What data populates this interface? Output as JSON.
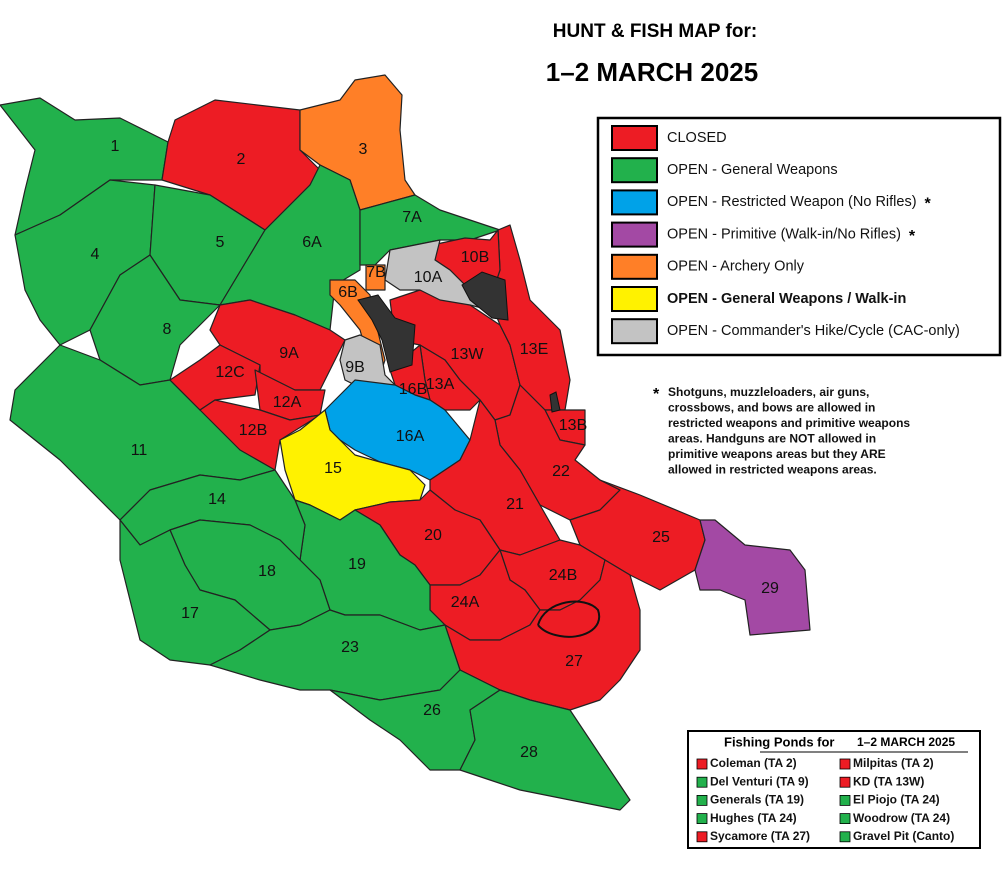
{
  "header": {
    "title": "HUNT & FISH MAP for:",
    "date": "1–2 MARCH 2025"
  },
  "legend": [
    {
      "label": "CLOSED",
      "color": "#ed1c24"
    },
    {
      "label": "OPEN - General Weapons",
      "color": "#22b14c"
    },
    {
      "label": "OPEN - Restricted Weapon (No Rifles)",
      "marker": "*",
      "color": "#00a2e8"
    },
    {
      "label": "OPEN - Primitive (Walk-in/No Rifles)",
      "marker": "*",
      "color": "#a349a4"
    },
    {
      "label": "OPEN - Archery Only",
      "color": "#ff7f27"
    },
    {
      "label": "OPEN - General Weapons / Walk-in",
      "color": "#fff200"
    },
    {
      "label": "OPEN - Commander's Hike/Cycle (CAC-only)",
      "color": "#c3c3c3"
    }
  ],
  "note": {
    "marker": "*",
    "lines": [
      "Shotguns, muzzleloaders, air guns,",
      "crossbows, and bows are allowed in",
      "restricted weapons and primitive weapons",
      "areas. Handguns are NOT allowed in",
      "primitive weapons areas but they ARE",
      "allowed in restricted weapons areas."
    ]
  },
  "areas": [
    {
      "label": "1",
      "color": "#22b14c"
    },
    {
      "label": "2",
      "color": "#ed1c24"
    },
    {
      "label": "3",
      "color": "#ff7f27"
    },
    {
      "label": "4",
      "color": "#22b14c"
    },
    {
      "label": "5",
      "color": "#22b14c"
    },
    {
      "label": "6A",
      "color": "#22b14c"
    },
    {
      "label": "7A",
      "color": "#22b14c"
    },
    {
      "label": "8",
      "color": "#22b14c"
    },
    {
      "label": "11",
      "color": "#22b14c"
    },
    {
      "label": "9A",
      "color": "#ed1c24"
    },
    {
      "label": "12C",
      "color": "#ed1c24"
    },
    {
      "label": "12A",
      "color": "#ed1c24"
    },
    {
      "label": "12B",
      "color": "#ed1c24"
    },
    {
      "label": "13W",
      "color": "#ed1c24"
    },
    {
      "label": "13E",
      "color": "#ed1c24"
    },
    {
      "label": "13B",
      "color": "#ed1c24"
    },
    {
      "label": "10B",
      "color": "#ed1c24"
    },
    {
      "label": "10A",
      "color": "#c3c3c3"
    },
    {
      "label": "13A",
      "color": "#ed1c24"
    },
    {
      "label": "16B",
      "color": "#ed1c24"
    },
    {
      "label": "6B",
      "color": "#ff7f27"
    },
    {
      "label": "7B",
      "color": "#ff7f27"
    },
    {
      "label": "9B",
      "color": "#c3c3c3"
    },
    {
      "label": "16A",
      "color": "#00a2e8"
    },
    {
      "label": "15",
      "color": "#fff200"
    },
    {
      "label": "22",
      "color": "#ed1c24"
    },
    {
      "label": "21",
      "color": "#ed1c24"
    },
    {
      "label": "20",
      "color": "#ed1c24"
    },
    {
      "label": "25",
      "color": "#ed1c24"
    },
    {
      "label": "29",
      "color": "#a349a4"
    },
    {
      "label": "24B",
      "color": "#ed1c24"
    },
    {
      "label": "24A",
      "color": "#ed1c24"
    },
    {
      "label": "27",
      "color": "#ed1c24"
    },
    {
      "label": "19",
      "color": "#22b14c"
    },
    {
      "label": "14",
      "color": "#22b14c"
    },
    {
      "label": "18",
      "color": "#22b14c"
    },
    {
      "label": "17",
      "color": "#22b14c"
    },
    {
      "label": "23",
      "color": "#22b14c"
    },
    {
      "label": "26",
      "color": "#22b14c"
    },
    {
      "label": "28",
      "color": "#22b14c"
    }
  ],
  "ponds": {
    "title": "Fishing Ponds for",
    "date": "1–2 MARCH 2025",
    "items": [
      {
        "name": "Coleman (TA 2)",
        "color": "#ed1c24"
      },
      {
        "name": "Milpitas (TA 2)",
        "color": "#ed1c24"
      },
      {
        "name": "Del Venturi (TA 9)",
        "color": "#22b14c"
      },
      {
        "name": "KD (TA 13W)",
        "color": "#ed1c24"
      },
      {
        "name": "Generals (TA 19)",
        "color": "#22b14c"
      },
      {
        "name": "El Piojo (TA 24)",
        "color": "#22b14c"
      },
      {
        "name": "Hughes (TA 24)",
        "color": "#22b14c"
      },
      {
        "name": "Woodrow (TA 24)",
        "color": "#22b14c"
      },
      {
        "name": "Sycamore (TA 27)",
        "color": "#ed1c24"
      },
      {
        "name": "Gravel Pit (Canto)",
        "color": "#22b14c"
      }
    ]
  }
}
